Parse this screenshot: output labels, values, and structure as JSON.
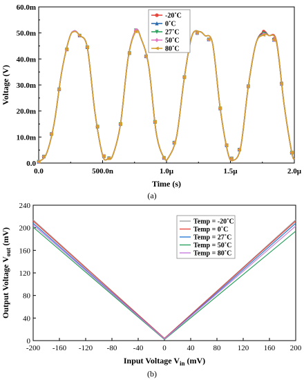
{
  "chart_data": [
    {
      "type": "line",
      "xlabel": "Time (s)",
      "ylabel": "Voltage (V)",
      "caption": "(a)",
      "xlim": [
        0,
        2.0
      ],
      "ylim": [
        0,
        60
      ],
      "x_ticks": [
        {
          "v": 0.0,
          "label": "0.0"
        },
        {
          "v": 0.5,
          "label": "500.0n"
        },
        {
          "v": 1.0,
          "label": "1.0µ"
        },
        {
          "v": 1.5,
          "label": "1.5µ"
        },
        {
          "v": 2.0,
          "label": "2.0µ"
        }
      ],
      "y_ticks": [
        {
          "v": 0,
          "label": "0.0"
        },
        {
          "v": 10,
          "label": "10.0m"
        },
        {
          "v": 20,
          "label": "20.0m"
        },
        {
          "v": 30,
          "label": "30.0m"
        },
        {
          "v": 40,
          "label": "40.0m"
        },
        {
          "v": 50,
          "label": "50.0m"
        },
        {
          "v": 60,
          "label": "60.0m"
        }
      ],
      "legend_position": "top-right",
      "x": [
        0.0,
        0.06,
        0.12,
        0.18,
        0.24,
        0.28,
        0.32,
        0.38,
        0.44,
        0.5,
        0.54,
        0.58,
        0.64,
        0.7,
        0.76,
        0.8,
        0.86,
        0.92,
        0.98,
        1.02,
        1.08,
        1.14,
        1.2,
        1.26,
        1.3,
        1.36,
        1.42,
        1.48,
        1.52,
        1.58,
        1.64,
        1.7,
        1.76,
        1.8,
        1.86,
        1.92,
        1.98,
        2.0
      ],
      "series": [
        {
          "name": "-20˚C",
          "color": "#e8473e",
          "marker": "circle",
          "values": [
            0.5,
            3.5,
            15,
            35,
            48,
            50.8,
            49,
            44.5,
            19.5,
            3,
            1.5,
            3,
            15,
            40.5,
            50.8,
            48,
            37.5,
            11.5,
            2,
            2.5,
            10.5,
            33,
            49,
            50.5,
            49,
            46,
            21,
            4,
            1,
            6,
            29.5,
            46,
            50.5,
            49,
            47,
            22.5,
            4,
            1.5
          ]
        },
        {
          "name": "0˚C",
          "color": "#2b6cb0",
          "marker": "triangle-up",
          "values": [
            0.5,
            3.5,
            15,
            35,
            48,
            50.8,
            49,
            44.5,
            19.5,
            3,
            1.5,
            3,
            15,
            40.5,
            51,
            48,
            37.5,
            11.5,
            2,
            2.5,
            10.5,
            33,
            49,
            50.5,
            49,
            46,
            21,
            4,
            1,
            6,
            29.5,
            46,
            50,
            49,
            46.5,
            22.5,
            4,
            1.5
          ]
        },
        {
          "name": "27˚C",
          "color": "#2ca25f",
          "marker": "triangle-down",
          "values": [
            0.5,
            3.5,
            15,
            35,
            48,
            50.8,
            49,
            44.5,
            19.5,
            3,
            1.5,
            3,
            15,
            40.5,
            51,
            48,
            37.5,
            11.5,
            2,
            2.5,
            10.5,
            33,
            49,
            50.5,
            49,
            46,
            21,
            4,
            1,
            6,
            29.5,
            46,
            49.8,
            49,
            46.5,
            22.5,
            4,
            1.5
          ]
        },
        {
          "name": "50˚C",
          "color": "#e377c2",
          "marker": "diamond",
          "values": [
            0.5,
            3.5,
            15,
            35,
            48,
            50.8,
            49,
            44.5,
            19.5,
            3,
            1.5,
            3,
            15,
            40.5,
            51,
            48,
            37.5,
            11.5,
            2,
            2.5,
            10.5,
            33,
            49,
            50.5,
            49,
            46,
            21,
            4,
            1,
            6,
            29.5,
            46,
            49.5,
            49,
            46.5,
            22.5,
            4,
            1.5
          ]
        },
        {
          "name": "80˚C",
          "color": "#d69e2e",
          "marker": "triangle-left",
          "values": [
            0.5,
            3.5,
            15,
            35,
            48,
            50.5,
            49,
            44.5,
            19.5,
            3,
            1.5,
            3,
            15,
            40.5,
            50.5,
            48,
            37.5,
            11.5,
            2,
            2.5,
            10.5,
            33,
            49,
            50.5,
            49,
            46,
            21,
            4,
            1,
            6,
            29.5,
            46,
            49.2,
            49,
            46.5,
            22.5,
            4,
            1.5
          ]
        }
      ],
      "marker_x": [
        0.0,
        0.04,
        0.1,
        0.16,
        0.22,
        0.32,
        0.38,
        0.46,
        0.51,
        0.55,
        0.64,
        0.71,
        0.76,
        0.84,
        0.91,
        0.98,
        1.06,
        1.14,
        1.24,
        1.33,
        1.42,
        1.47,
        1.51,
        1.57,
        1.64,
        1.76,
        1.84,
        1.9,
        1.98
      ]
    },
    {
      "type": "line",
      "xlabel": "Input Voltage V",
      "xlabel_sub": "in",
      "xlabel_unit": " (mV)",
      "ylabel": "Output Voltage V",
      "ylabel_sub": "out",
      "ylabel_unit": " (mV)",
      "caption": "(b)",
      "xlim": [
        -200,
        200
      ],
      "ylim": [
        0,
        240
      ],
      "x_ticks": [
        -200,
        -160,
        -120,
        -80,
        -40,
        0,
        40,
        80,
        120,
        160,
        200
      ],
      "y_ticks": [
        0,
        40,
        80,
        120,
        160,
        200,
        240
      ],
      "legend_position": "top-right",
      "series": [
        {
          "name": "Temp = -20˚C",
          "color": "#a0a0a0",
          "x": [
            -200,
            0,
            200
          ],
          "values": [
            214,
            4,
            214
          ]
        },
        {
          "name": "Temp = 0˚C",
          "color": "#e8473e",
          "x": [
            -200,
            0,
            200
          ],
          "values": [
            212,
            4,
            212
          ]
        },
        {
          "name": "Temp = 27˚C",
          "color": "#2b7bd6",
          "x": [
            -200,
            0,
            200
          ],
          "values": [
            208,
            3,
            208
          ]
        },
        {
          "name": "Temp = 50˚C",
          "color": "#2ca25f",
          "x": [
            -200,
            0,
            200
          ],
          "values": [
            201,
            2,
            194
          ]
        },
        {
          "name": "Temp = 80˚C",
          "color": "#c77dde",
          "x": [
            -200,
            0,
            200
          ],
          "values": [
            205,
            3,
            203
          ]
        }
      ]
    }
  ]
}
